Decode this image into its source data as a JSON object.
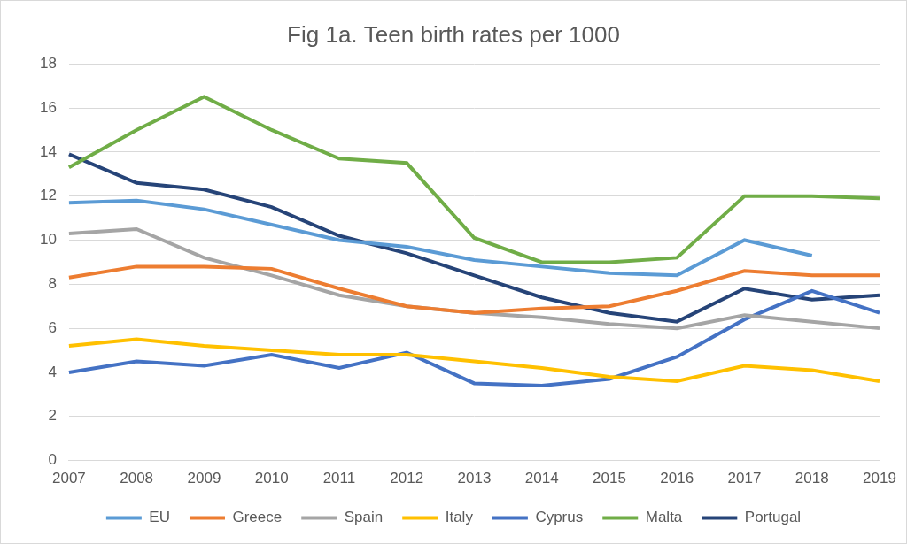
{
  "chart_data": {
    "type": "line",
    "title": "Fig 1a. Teen birth rates per 1000",
    "categories": [
      "2007",
      "2008",
      "2009",
      "2010",
      "2011",
      "2012",
      "2013",
      "2014",
      "2015",
      "2016",
      "2017",
      "2018",
      "2019"
    ],
    "series": [
      {
        "name": "EU",
        "color": "#5b9bd5",
        "values": [
          11.7,
          11.8,
          11.4,
          10.7,
          10.0,
          9.7,
          9.1,
          8.8,
          8.5,
          8.4,
          10.0,
          9.3,
          null
        ]
      },
      {
        "name": "Greece",
        "color": "#ed7d31",
        "values": [
          8.3,
          8.8,
          8.8,
          8.7,
          7.8,
          7.0,
          6.7,
          6.9,
          7.0,
          7.7,
          8.6,
          8.4,
          8.4
        ]
      },
      {
        "name": "Spain",
        "color": "#a5a5a5",
        "values": [
          10.3,
          10.5,
          9.2,
          8.4,
          7.5,
          7.0,
          6.7,
          6.5,
          6.2,
          6.0,
          6.6,
          6.3,
          6.0
        ]
      },
      {
        "name": "Italy",
        "color": "#ffc000",
        "values": [
          5.2,
          5.5,
          5.2,
          5.0,
          4.8,
          4.8,
          4.5,
          4.2,
          3.8,
          3.6,
          4.3,
          4.1,
          3.6
        ]
      },
      {
        "name": "Cyprus",
        "color": "#4472c4",
        "values": [
          4.0,
          4.5,
          4.3,
          4.8,
          4.2,
          4.9,
          3.5,
          3.4,
          3.7,
          4.7,
          6.4,
          7.7,
          6.7
        ]
      },
      {
        "name": "Malta",
        "color": "#70ad47",
        "values": [
          13.3,
          15.0,
          16.5,
          15.0,
          13.7,
          13.5,
          10.1,
          9.0,
          9.0,
          9.2,
          12.0,
          12.0,
          11.9
        ]
      },
      {
        "name": "Portugal",
        "color": "#264478",
        "values": [
          13.9,
          12.6,
          12.3,
          11.5,
          10.2,
          9.4,
          8.4,
          7.4,
          6.7,
          6.3,
          7.8,
          7.3,
          7.5
        ]
      }
    ],
    "ylim": [
      0,
      18
    ],
    "yticks": [
      0,
      2,
      4,
      6,
      8,
      10,
      12,
      14,
      16,
      18
    ],
    "grid": true,
    "legend": "bottom"
  }
}
